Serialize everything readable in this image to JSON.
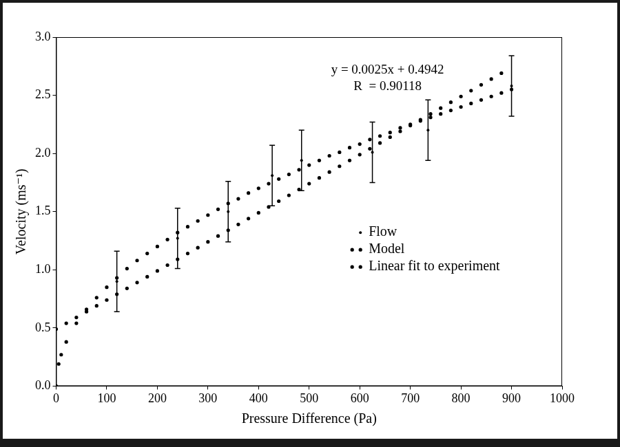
{
  "chart_data": {
    "type": "scatter",
    "x_label": "Pressure Difference (Pa)",
    "y_label": "Velocity (ms⁻¹)",
    "xlim": [
      0,
      1000
    ],
    "xticks": [
      0,
      100,
      200,
      300,
      400,
      500,
      600,
      700,
      800,
      900,
      1000
    ],
    "ylim": [
      0,
      3
    ],
    "yticks": [
      {
        "value": 0,
        "label": "0.0"
      },
      0.5,
      {
        "value": 1,
        "label": "1.0"
      },
      1.5,
      {
        "value": 2,
        "label": "2.0"
      },
      2.5,
      {
        "value": 3,
        "label": "3.0"
      }
    ],
    "grid": false,
    "legend": "right",
    "annotations": [
      "y = 0.0025x + 0.4942",
      "R  = 0.90118"
    ],
    "series": [
      {
        "name": "Flow",
        "color": "#000000",
        "marker": "dot",
        "x": [
          0,
          120,
          240,
          340,
          427,
          485,
          625,
          735,
          900
        ],
        "values": [
          0,
          0.9,
          1.27,
          1.5,
          1.81,
          1.94,
          2.01,
          2.2,
          2.58
        ],
        "errors": [
          0,
          0.26,
          0.26,
          0.26,
          0.26,
          0.26,
          0.26,
          0.26,
          0.26
        ]
      },
      {
        "name": "Model",
        "color": "#000000",
        "marker": "dot",
        "x": [
          0,
          5,
          10,
          20,
          40,
          60,
          80,
          100,
          120,
          140,
          160,
          180,
          200,
          220,
          240,
          260,
          280,
          300,
          320,
          340,
          360,
          380,
          400,
          420,
          440,
          460,
          480,
          500,
          520,
          540,
          560,
          580,
          600,
          620,
          640,
          660,
          680,
          700,
          720,
          740,
          760,
          780,
          800,
          820,
          840,
          860,
          880,
          900
        ],
        "values": [
          0,
          0.19,
          0.27,
          0.38,
          0.54,
          0.66,
          0.76,
          0.85,
          0.93,
          1.01,
          1.08,
          1.14,
          1.2,
          1.26,
          1.32,
          1.37,
          1.42,
          1.47,
          1.52,
          1.57,
          1.61,
          1.66,
          1.7,
          1.74,
          1.78,
          1.82,
          1.86,
          1.9,
          1.94,
          1.98,
          2.01,
          2.05,
          2.08,
          2.12,
          2.15,
          2.18,
          2.22,
          2.25,
          2.28,
          2.31,
          2.34,
          2.37,
          2.4,
          2.43,
          2.46,
          2.49,
          2.52,
          2.55
        ]
      },
      {
        "name": "Linear fit to experiment",
        "color": "#000000",
        "marker": "dot",
        "x": [
          0,
          20,
          40,
          60,
          80,
          100,
          120,
          140,
          160,
          180,
          200,
          220,
          240,
          260,
          280,
          300,
          320,
          340,
          360,
          380,
          400,
          420,
          440,
          460,
          480,
          500,
          520,
          540,
          560,
          580,
          600,
          620,
          640,
          660,
          680,
          700,
          720,
          740,
          760,
          780,
          800,
          820,
          840,
          860,
          880
        ],
        "values": [
          0.49,
          0.54,
          0.59,
          0.64,
          0.69,
          0.74,
          0.79,
          0.84,
          0.89,
          0.94,
          0.99,
          1.04,
          1.09,
          1.14,
          1.19,
          1.24,
          1.29,
          1.34,
          1.39,
          1.44,
          1.49,
          1.54,
          1.59,
          1.64,
          1.69,
          1.74,
          1.79,
          1.84,
          1.89,
          1.94,
          1.99,
          2.04,
          2.09,
          2.14,
          2.19,
          2.24,
          2.29,
          2.34,
          2.39,
          2.44,
          2.49,
          2.54,
          2.59,
          2.64,
          2.69
        ]
      }
    ]
  }
}
